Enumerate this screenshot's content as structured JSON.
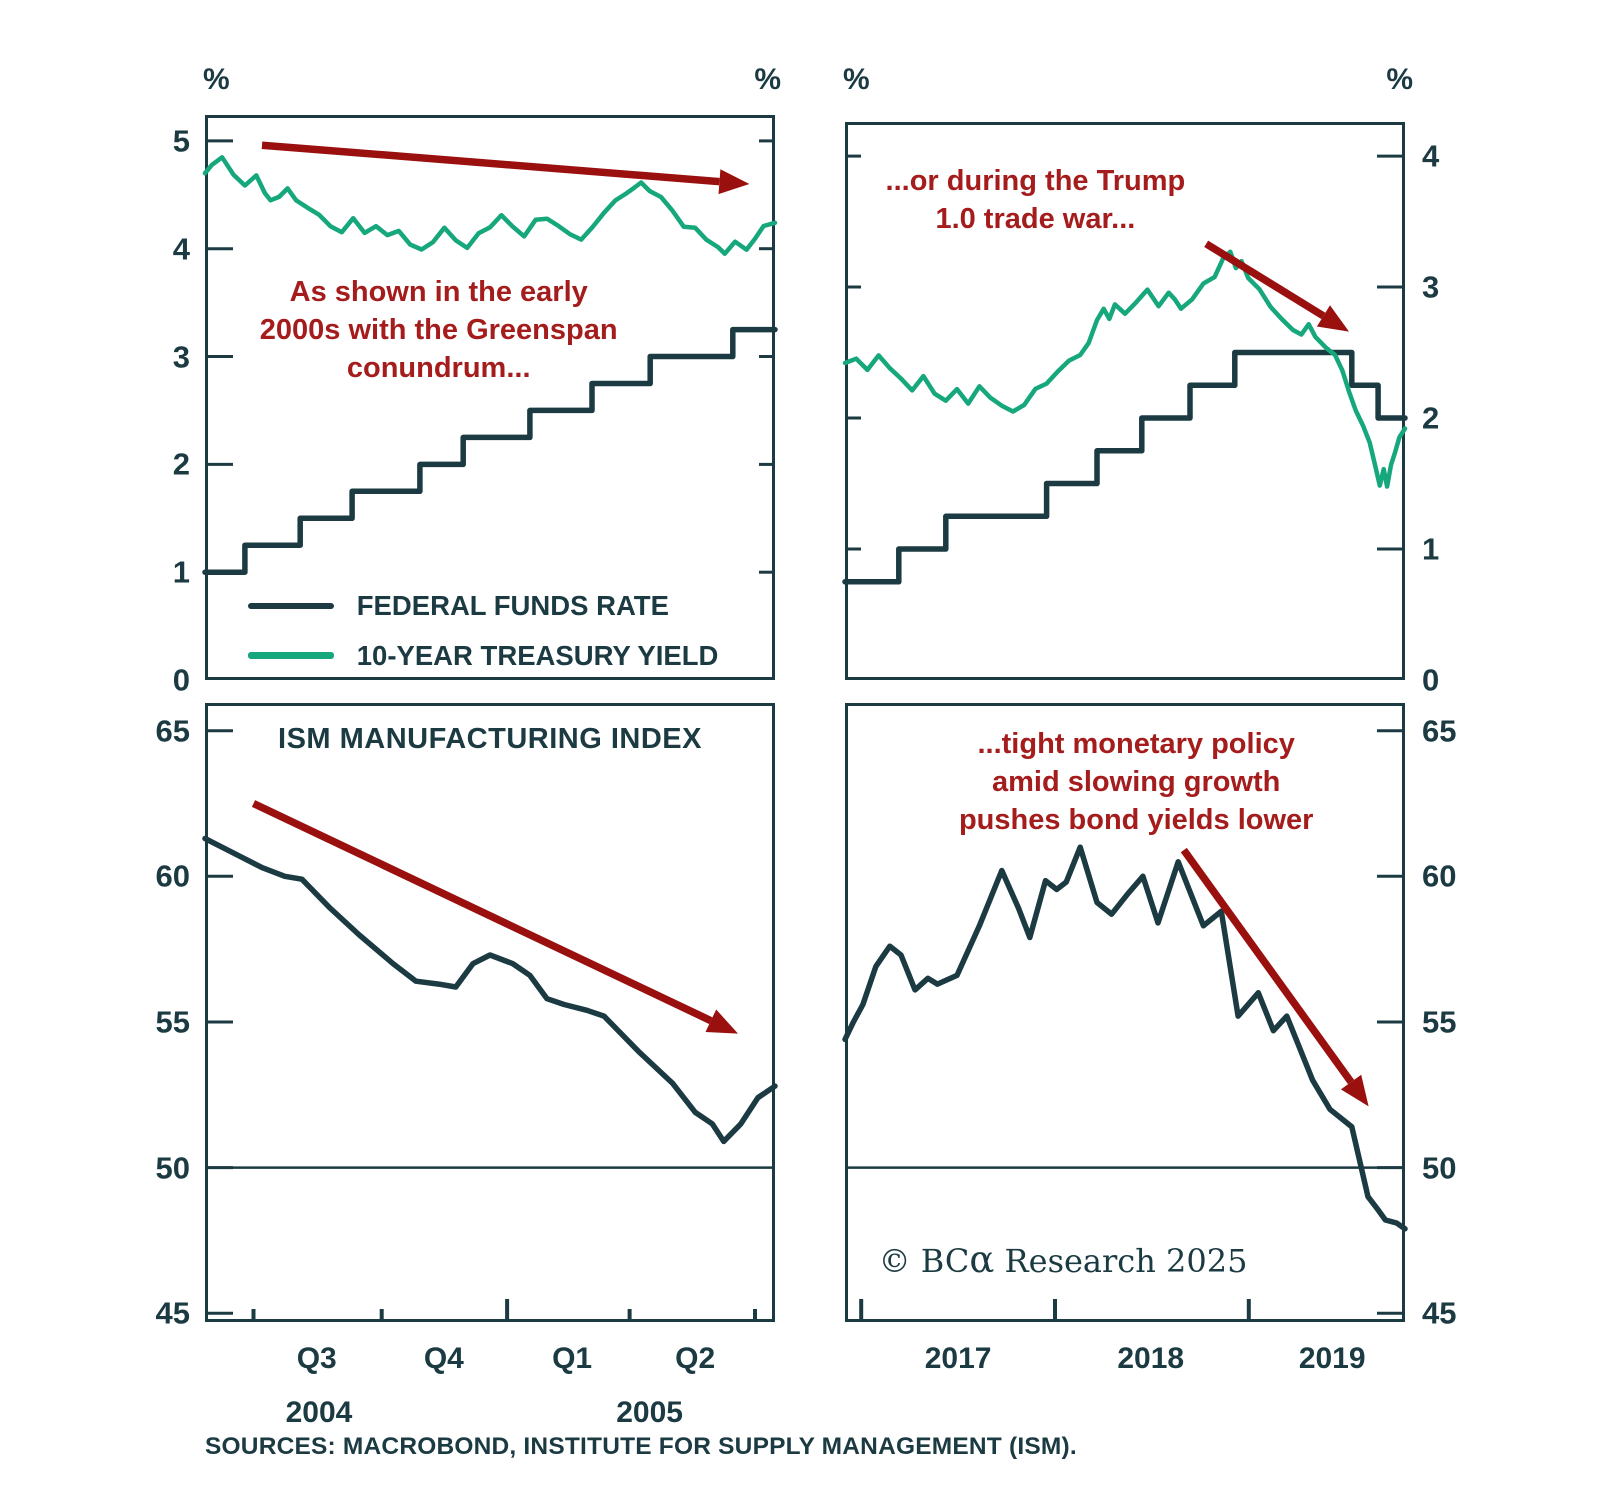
{
  "colors": {
    "dark": "#1b3a42",
    "green": "#16a77c",
    "red_text": "#a51c1c",
    "red_arrow": "#9a100f",
    "background": "#ffffff"
  },
  "legend": {
    "items": [
      {
        "label": "FEDERAL FUNDS RATE",
        "color": "dark"
      },
      {
        "label": "10-YEAR TREASURY YIELD",
        "color": "green"
      }
    ]
  },
  "sources": "SOURCES: MACROBOND, INSTITUTE FOR SUPPLY MANAGEMENT (ISM).",
  "copyright": {
    "prefix": "© BC",
    "alpha": "α",
    "suffix": " Research 2025"
  },
  "chart_data": [
    {
      "id": "fed-funds-vs-10y-greenspan-2004-2005",
      "type": "line",
      "unit_left": "%",
      "unit_right": "%",
      "ylim": [
        0,
        5.24
      ],
      "yticks": {
        "side": "left",
        "values": [
          0,
          1,
          2,
          3,
          4,
          5
        ],
        "labels": [
          "0",
          "1",
          "2",
          "3",
          "4",
          "5"
        ]
      },
      "mirror_ticks": true,
      "annotation": "As shown in the early\n2000s with the Greenspan\nconundrum...",
      "arrow": {
        "from": [
          0.1,
          4.96
        ],
        "to": [
          0.955,
          4.6
        ]
      },
      "series": [
        {
          "name": "FEDERAL FUNDS RATE",
          "slug": "federal-funds-rate",
          "type": "step",
          "color": "dark",
          "w": 5.5,
          "points": [
            [
              0,
              1.0
            ],
            [
              0.07,
              1.25
            ],
            [
              0.167,
              1.5
            ],
            [
              0.258,
              1.75
            ],
            [
              0.377,
              2.0
            ],
            [
              0.453,
              2.25
            ],
            [
              0.57,
              2.5
            ],
            [
              0.679,
              2.75
            ],
            [
              0.781,
              3.0
            ],
            [
              0.926,
              3.25
            ]
          ]
        },
        {
          "name": "10-YEAR TREASURY YIELD",
          "slug": "treasury-10y",
          "type": "line",
          "color": "green",
          "w": 4.5,
          "noise": 2.6,
          "points": [
            [
              0,
              4.7
            ],
            [
              0.012,
              4.78
            ],
            [
              0.03,
              4.85
            ],
            [
              0.05,
              4.67
            ],
            [
              0.07,
              4.61
            ],
            [
              0.09,
              4.66
            ],
            [
              0.105,
              4.52
            ],
            [
              0.115,
              4.45
            ],
            [
              0.13,
              4.49
            ],
            [
              0.145,
              4.56
            ],
            [
              0.16,
              4.45
            ],
            [
              0.18,
              4.39
            ],
            [
              0.2,
              4.3
            ],
            [
              0.22,
              4.22
            ],
            [
              0.24,
              4.15
            ],
            [
              0.26,
              4.28
            ],
            [
              0.28,
              4.15
            ],
            [
              0.3,
              4.21
            ],
            [
              0.32,
              4.12
            ],
            [
              0.34,
              4.17
            ],
            [
              0.36,
              4.04
            ],
            [
              0.38,
              3.98
            ],
            [
              0.4,
              4.08
            ],
            [
              0.42,
              4.18
            ],
            [
              0.44,
              4.08
            ],
            [
              0.46,
              4.02
            ],
            [
              0.48,
              4.12
            ],
            [
              0.5,
              4.22
            ],
            [
              0.52,
              4.3
            ],
            [
              0.54,
              4.2
            ],
            [
              0.56,
              4.13
            ],
            [
              0.58,
              4.25
            ],
            [
              0.6,
              4.29
            ],
            [
              0.62,
              4.21
            ],
            [
              0.64,
              4.13
            ],
            [
              0.66,
              4.09
            ],
            [
              0.68,
              4.2
            ],
            [
              0.7,
              4.33
            ],
            [
              0.72,
              4.45
            ],
            [
              0.74,
              4.52
            ],
            [
              0.765,
              4.6
            ],
            [
              0.78,
              4.55
            ],
            [
              0.8,
              4.47
            ],
            [
              0.82,
              4.35
            ],
            [
              0.84,
              4.22
            ],
            [
              0.86,
              4.17
            ],
            [
              0.88,
              4.1
            ],
            [
              0.9,
              4.01
            ],
            [
              0.912,
              3.94
            ],
            [
              0.93,
              4.08
            ],
            [
              0.95,
              3.99
            ],
            [
              0.965,
              4.1
            ],
            [
              0.98,
              4.22
            ],
            [
              1,
              4.24
            ]
          ]
        }
      ]
    },
    {
      "id": "fed-funds-vs-10y-trade-war-2017-2019",
      "type": "line",
      "unit_left": "%",
      "unit_right": "%",
      "ylim": [
        0,
        4.26
      ],
      "yticks": {
        "side": "right",
        "values": [
          0,
          1,
          2,
          3,
          4
        ],
        "labels": [
          "0",
          "1",
          "2",
          "3",
          "4"
        ]
      },
      "mirror_ticks": true,
      "annotation": "...or during the Trump\n1.0 trade war...",
      "arrow": {
        "from": [
          0.645,
          3.33
        ],
        "to": [
          0.9,
          2.66
        ]
      },
      "series": [
        {
          "name": "FEDERAL FUNDS RATE",
          "slug": "federal-funds-rate",
          "type": "step",
          "color": "dark",
          "w": 5.5,
          "points": [
            [
              0,
              0.75
            ],
            [
              0.096,
              1.0
            ],
            [
              0.18,
              1.25
            ],
            [
              0.36,
              1.5
            ],
            [
              0.45,
              1.75
            ],
            [
              0.53,
              2.0
            ],
            [
              0.616,
              2.25
            ],
            [
              0.696,
              2.5
            ],
            [
              0.905,
              2.25
            ],
            [
              0.952,
              2.0
            ]
          ]
        },
        {
          "name": "10-YEAR TREASURY YIELD",
          "slug": "treasury-10y",
          "type": "line",
          "color": "green",
          "w": 4.5,
          "noise": 3.0,
          "points": [
            [
              0,
              2.42
            ],
            [
              0.02,
              2.47
            ],
            [
              0.04,
              2.35
            ],
            [
              0.06,
              2.49
            ],
            [
              0.08,
              2.38
            ],
            [
              0.1,
              2.29
            ],
            [
              0.12,
              2.23
            ],
            [
              0.14,
              2.3
            ],
            [
              0.16,
              2.2
            ],
            [
              0.18,
              2.13
            ],
            [
              0.2,
              2.21
            ],
            [
              0.22,
              2.13
            ],
            [
              0.24,
              2.22
            ],
            [
              0.26,
              2.17
            ],
            [
              0.28,
              2.09
            ],
            [
              0.3,
              2.04
            ],
            [
              0.32,
              2.12
            ],
            [
              0.34,
              2.2
            ],
            [
              0.36,
              2.28
            ],
            [
              0.38,
              2.35
            ],
            [
              0.4,
              2.43
            ],
            [
              0.42,
              2.5
            ],
            [
              0.435,
              2.57
            ],
            [
              0.45,
              2.74
            ],
            [
              0.462,
              2.84
            ],
            [
              0.472,
              2.77
            ],
            [
              0.482,
              2.87
            ],
            [
              0.5,
              2.79
            ],
            [
              0.52,
              2.9
            ],
            [
              0.54,
              2.96
            ],
            [
              0.56,
              2.87
            ],
            [
              0.578,
              2.94
            ],
            [
              0.6,
              2.83
            ],
            [
              0.62,
              2.92
            ],
            [
              0.64,
              3.01
            ],
            [
              0.66,
              3.09
            ],
            [
              0.675,
              3.2
            ],
            [
              0.688,
              3.25
            ],
            [
              0.698,
              3.15
            ],
            [
              0.708,
              3.22
            ],
            [
              0.72,
              3.08
            ],
            [
              0.74,
              2.97
            ],
            [
              0.76,
              2.86
            ],
            [
              0.78,
              2.75
            ],
            [
              0.8,
              2.67
            ],
            [
              0.815,
              2.63
            ],
            [
              0.828,
              2.7
            ],
            [
              0.84,
              2.61
            ],
            [
              0.86,
              2.54
            ],
            [
              0.875,
              2.46
            ],
            [
              0.888,
              2.35
            ],
            [
              0.9,
              2.2
            ],
            [
              0.912,
              2.05
            ],
            [
              0.925,
              1.92
            ],
            [
              0.937,
              1.8
            ],
            [
              0.948,
              1.62
            ],
            [
              0.955,
              1.5
            ],
            [
              0.962,
              1.6
            ],
            [
              0.968,
              1.48
            ],
            [
              0.975,
              1.62
            ],
            [
              0.982,
              1.74
            ],
            [
              0.99,
              1.85
            ],
            [
              1,
              1.92
            ]
          ]
        }
      ]
    },
    {
      "id": "ism-manufacturing-2004-2005",
      "type": "line",
      "title": "ISM MANUFACTURING INDEX",
      "ylim": [
        44.7,
        65.95
      ],
      "yticks": {
        "side": "left",
        "values": [
          45,
          50,
          55,
          60,
          65
        ],
        "labels": [
          "45",
          "50",
          "55",
          "60",
          "65"
        ]
      },
      "hline": 50,
      "arrow": {
        "from": [
          0.085,
          62.5
        ],
        "to": [
          0.935,
          54.6
        ]
      },
      "xticks": [
        {
          "fx": 0.085,
          "tall": false
        },
        {
          "fx": 0.31,
          "tall": false
        },
        {
          "fx": 0.53,
          "tall": true
        },
        {
          "fx": 0.745,
          "tall": false
        },
        {
          "fx": 0.965,
          "tall": false
        }
      ],
      "xlabels": [
        {
          "fx": 0.196,
          "text": "Q3",
          "row": 1
        },
        {
          "fx": 0.419,
          "text": "Q4",
          "row": 1
        },
        {
          "fx": 0.644,
          "text": "Q1",
          "row": 1
        },
        {
          "fx": 0.86,
          "text": "Q2",
          "row": 1
        },
        {
          "fx": 0.2,
          "text": "2004",
          "row": 2
        },
        {
          "fx": 0.78,
          "text": "2005",
          "row": 2
        }
      ],
      "series": [
        {
          "name": "ISM MANUFACTURING INDEX",
          "slug": "ism-manufacturing-index",
          "type": "line",
          "color": "dark",
          "w": 5.5,
          "points": [
            [
              0,
              61.3
            ],
            [
              0.06,
              60.7
            ],
            [
              0.1,
              60.3
            ],
            [
              0.14,
              60.0
            ],
            [
              0.17,
              59.9
            ],
            [
              0.22,
              58.9
            ],
            [
              0.27,
              58.0
            ],
            [
              0.33,
              57.0
            ],
            [
              0.37,
              56.4
            ],
            [
              0.41,
              56.3
            ],
            [
              0.44,
              56.2
            ],
            [
              0.47,
              57.0
            ],
            [
              0.5,
              57.3
            ],
            [
              0.54,
              57.0
            ],
            [
              0.57,
              56.6
            ],
            [
              0.6,
              55.8
            ],
            [
              0.63,
              55.6
            ],
            [
              0.67,
              55.4
            ],
            [
              0.7,
              55.2
            ],
            [
              0.76,
              54.0
            ],
            [
              0.82,
              52.9
            ],
            [
              0.86,
              51.9
            ],
            [
              0.89,
              51.5
            ],
            [
              0.91,
              50.9
            ],
            [
              0.94,
              51.5
            ],
            [
              0.97,
              52.4
            ],
            [
              1,
              52.8
            ]
          ]
        }
      ]
    },
    {
      "id": "ism-manufacturing-2017-2019",
      "type": "line",
      "ylim": [
        44.7,
        65.95
      ],
      "yticks": {
        "side": "right",
        "values": [
          45,
          50,
          55,
          60,
          65
        ],
        "labels": [
          "45",
          "50",
          "55",
          "60",
          "65"
        ]
      },
      "hline": 50,
      "annotation": "...tight monetary policy\namid slowing growth\npushes bond yields lower",
      "arrow": {
        "from": [
          0.605,
          60.9
        ],
        "to": [
          0.935,
          52.1
        ]
      },
      "xticks": [
        {
          "fx": 0.029,
          "tall": true
        },
        {
          "fx": 0.375,
          "tall": true
        },
        {
          "fx": 0.721,
          "tall": true
        }
      ],
      "xlabels": [
        {
          "fx": 0.202,
          "text": "2017",
          "row": 1
        },
        {
          "fx": 0.546,
          "text": "2018",
          "row": 1
        },
        {
          "fx": 0.87,
          "text": "2019",
          "row": 1
        }
      ],
      "series": [
        {
          "name": "ISM MANUFACTURING INDEX",
          "slug": "ism-manufacturing-index",
          "type": "line",
          "color": "dark",
          "w": 5.5,
          "points": [
            [
              0,
              54.4
            ],
            [
              0.015,
              55.0
            ],
            [
              0.032,
              55.6
            ],
            [
              0.055,
              56.9
            ],
            [
              0.08,
              57.6
            ],
            [
              0.1,
              57.3
            ],
            [
              0.125,
              56.1
            ],
            [
              0.148,
              56.5
            ],
            [
              0.165,
              56.3
            ],
            [
              0.2,
              56.6
            ],
            [
              0.24,
              58.3
            ],
            [
              0.28,
              60.2
            ],
            [
              0.31,
              58.9
            ],
            [
              0.33,
              57.9
            ],
            [
              0.358,
              59.85
            ],
            [
              0.378,
              59.55
            ],
            [
              0.395,
              59.8
            ],
            [
              0.42,
              61.0
            ],
            [
              0.45,
              59.1
            ],
            [
              0.476,
              58.7
            ],
            [
              0.505,
              59.4
            ],
            [
              0.532,
              60.0
            ],
            [
              0.559,
              58.4
            ],
            [
              0.595,
              60.5
            ],
            [
              0.64,
              58.3
            ],
            [
              0.672,
              58.8
            ],
            [
              0.702,
              55.2
            ],
            [
              0.738,
              56.0
            ],
            [
              0.765,
              54.7
            ],
            [
              0.789,
              55.2
            ],
            [
              0.835,
              53.0
            ],
            [
              0.866,
              52.0
            ],
            [
              0.905,
              51.4
            ],
            [
              0.934,
              49.0
            ],
            [
              0.95,
              48.6
            ],
            [
              0.965,
              48.2
            ],
            [
              0.985,
              48.1
            ],
            [
              1,
              47.9
            ]
          ]
        }
      ]
    }
  ]
}
